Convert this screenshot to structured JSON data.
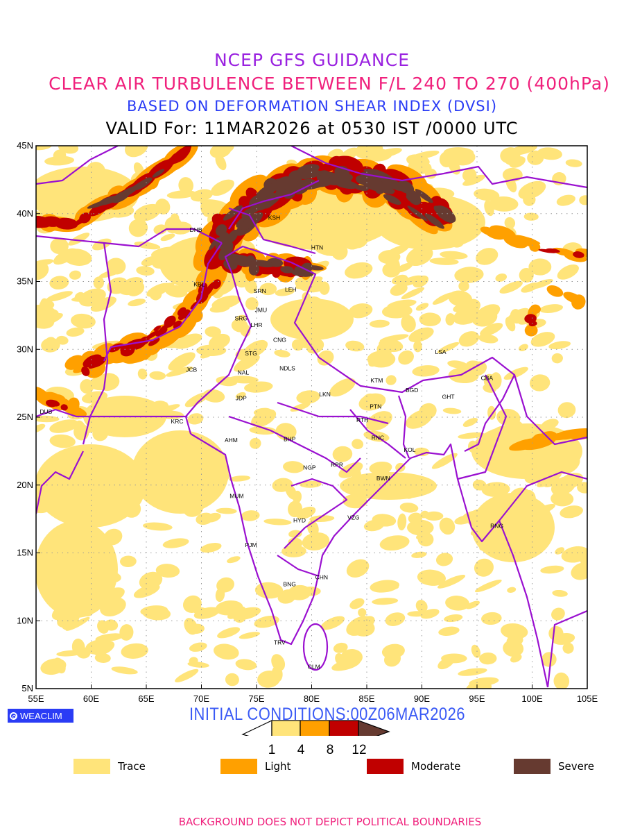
{
  "titles": {
    "line1": "NCEP GFS GUIDANCE",
    "line2": "CLEAR AIR TURBULENCE BETWEEN F/L 240 TO 270 (400hPa)",
    "line3": "BASED ON DEFORMATION SHEAR INDEX (DVSI)",
    "line4": "VALID For: 11MAR2026 at 0530 IST /0000 UTC"
  },
  "map": {
    "lon_range": [
      55,
      105
    ],
    "lat_range": [
      5,
      45
    ],
    "lon_labels": [
      "55E",
      "60E",
      "65E",
      "70E",
      "75E",
      "80E",
      "85E",
      "90E",
      "95E",
      "100E",
      "105E"
    ],
    "lat_labels": [
      "45N",
      "40N",
      "35N",
      "30N",
      "25N",
      "20N",
      "15N",
      "10N",
      "5N"
    ],
    "cities": [
      {
        "code": "DHB",
        "lon": 69.5,
        "lat": 38.8
      },
      {
        "code": "KSH",
        "lon": 76.6,
        "lat": 39.7
      },
      {
        "code": "HTN",
        "lon": 80.5,
        "lat": 37.5
      },
      {
        "code": "KBL",
        "lon": 69.8,
        "lat": 34.8
      },
      {
        "code": "SRN",
        "lon": 75.3,
        "lat": 34.3
      },
      {
        "code": "LEH",
        "lon": 78.1,
        "lat": 34.4
      },
      {
        "code": "JMU",
        "lon": 75.4,
        "lat": 32.9
      },
      {
        "code": "SRG",
        "lon": 73.6,
        "lat": 32.3
      },
      {
        "code": "LHR",
        "lon": 75.0,
        "lat": 31.8
      },
      {
        "code": "CNG",
        "lon": 77.1,
        "lat": 30.7
      },
      {
        "code": "STG",
        "lon": 74.5,
        "lat": 29.7
      },
      {
        "code": "JCB",
        "lon": 69.1,
        "lat": 28.5
      },
      {
        "code": "NAL",
        "lon": 73.8,
        "lat": 28.3
      },
      {
        "code": "NDLS",
        "lon": 77.8,
        "lat": 28.6
      },
      {
        "code": "JDP",
        "lon": 73.6,
        "lat": 26.4
      },
      {
        "code": "LKN",
        "lon": 81.2,
        "lat": 26.7
      },
      {
        "code": "KTM",
        "lon": 85.9,
        "lat": 27.7
      },
      {
        "code": "BGD",
        "lon": 89.1,
        "lat": 27.0
      },
      {
        "code": "GHT",
        "lon": 92.4,
        "lat": 26.5
      },
      {
        "code": "CBA",
        "lon": 95.9,
        "lat": 27.9
      },
      {
        "code": "LSA",
        "lon": 91.7,
        "lat": 29.8
      },
      {
        "code": "PTN",
        "lon": 85.8,
        "lat": 25.8
      },
      {
        "code": "RTH",
        "lon": 84.6,
        "lat": 24.8
      },
      {
        "code": "RNC",
        "lon": 86.0,
        "lat": 23.5
      },
      {
        "code": "KOL",
        "lon": 88.9,
        "lat": 22.6
      },
      {
        "code": "BWN",
        "lon": 86.5,
        "lat": 20.5
      },
      {
        "code": "DUB",
        "lon": 55.9,
        "lat": 25.4
      },
      {
        "code": "KRC",
        "lon": 67.8,
        "lat": 24.7
      },
      {
        "code": "AHM",
        "lon": 72.7,
        "lat": 23.3
      },
      {
        "code": "BHP",
        "lon": 78.0,
        "lat": 23.4
      },
      {
        "code": "NGP",
        "lon": 79.8,
        "lat": 21.3
      },
      {
        "code": "RPR",
        "lon": 82.3,
        "lat": 21.5
      },
      {
        "code": "MUM",
        "lon": 73.2,
        "lat": 19.2
      },
      {
        "code": "HYD",
        "lon": 78.9,
        "lat": 17.4
      },
      {
        "code": "VZG",
        "lon": 83.8,
        "lat": 17.6
      },
      {
        "code": "PJM",
        "lon": 74.5,
        "lat": 15.6
      },
      {
        "code": "CHN",
        "lon": 80.9,
        "lat": 13.2
      },
      {
        "code": "BNG",
        "lon": 78.0,
        "lat": 12.7
      },
      {
        "code": "TRV",
        "lon": 77.1,
        "lat": 8.4
      },
      {
        "code": "CLM",
        "lon": 80.2,
        "lat": 6.6
      },
      {
        "code": "RNG",
        "lon": 96.8,
        "lat": 17.0
      }
    ]
  },
  "logo": "WEACLIM",
  "initial_conditions": "INITIAL CONDITIONS:00Z06MAR2026",
  "colorbar": {
    "ticks": [
      "1",
      "4",
      "8",
      "12"
    ]
  },
  "legend": [
    {
      "label": "Trace",
      "color": "#ffe47a"
    },
    {
      "label": "Light",
      "color": "#ffa000"
    },
    {
      "label": "Moderate",
      "color": "#c00000"
    },
    {
      "label": "Severe",
      "color": "#663a30"
    }
  ],
  "colors": {
    "boundary": "#9a10d0",
    "trace": "#ffe47a",
    "light": "#ffa000",
    "moderate": "#c00000",
    "severe": "#663a30"
  },
  "footer": "BACKGROUND DOES NOT DEPICT POLITICAL BOUNDARIES"
}
